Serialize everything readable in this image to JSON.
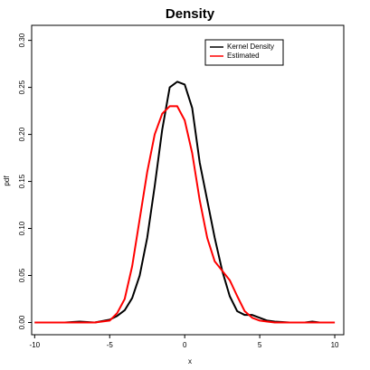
{
  "chart_data": {
    "type": "line",
    "title": "Density",
    "x_label": "x",
    "y_label": "pdf",
    "x": [
      -10,
      -9,
      -8,
      -7,
      -6,
      -5,
      -4.5,
      -4,
      -3.5,
      -3,
      -2.5,
      -2,
      -1.5,
      -1,
      -0.5,
      0,
      0.5,
      1,
      1.5,
      2,
      2.5,
      3,
      3.5,
      4,
      4.5,
      5,
      5.5,
      6,
      7,
      8,
      8.5,
      9,
      10
    ],
    "series": [
      {
        "name": "Kernel Density",
        "color": "#000000",
        "values": [
          0,
          0,
          0,
          0.001,
          0,
          0.003,
          0.007,
          0.013,
          0.026,
          0.05,
          0.09,
          0.145,
          0.205,
          0.25,
          0.256,
          0.253,
          0.228,
          0.17,
          0.13,
          0.09,
          0.055,
          0.028,
          0.012,
          0.008,
          0.008,
          0.005,
          0.002,
          0.001,
          0,
          0,
          0.001,
          0,
          0
        ]
      },
      {
        "name": "Estimated",
        "color": "#ff0000",
        "values": [
          0,
          0,
          0,
          0,
          0,
          0.002,
          0.01,
          0.025,
          0.06,
          0.11,
          0.16,
          0.2,
          0.222,
          0.23,
          0.23,
          0.215,
          0.18,
          0.13,
          0.09,
          0.065,
          0.055,
          0.045,
          0.028,
          0.012,
          0.005,
          0.002,
          0.001,
          0,
          0,
          0,
          0,
          0,
          0
        ]
      }
    ],
    "xlim": [
      -10.2,
      10.6
    ],
    "ylim": [
      -0.013,
      0.316
    ],
    "xticks": [
      -10,
      -5,
      0,
      5,
      10
    ],
    "yticks": [
      {
        "value": 0,
        "label": "0.00"
      },
      {
        "value": 0.05,
        "label": "0.05"
      },
      {
        "value": 0.1,
        "label": "0.10"
      },
      {
        "value": 0.15,
        "label": "0.15"
      },
      {
        "value": 0.2,
        "label": "0.20"
      },
      {
        "value": 0.25,
        "label": "0.25"
      },
      {
        "value": 0.3,
        "label": "0.30"
      }
    ],
    "legend": "top-right"
  }
}
